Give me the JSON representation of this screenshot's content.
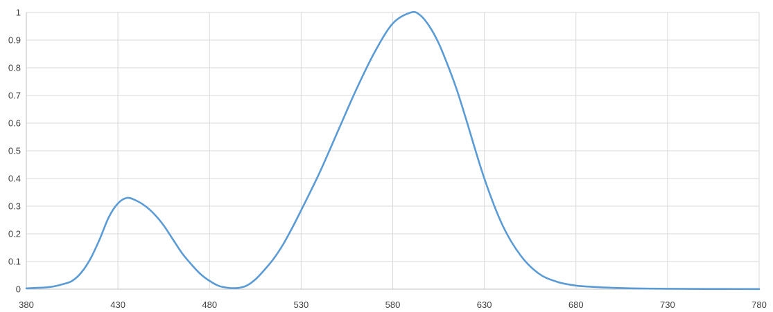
{
  "chart_data": {
    "type": "line",
    "title": "",
    "xlabel": "",
    "ylabel": "",
    "xlim": [
      380,
      780
    ],
    "ylim": [
      0,
      1
    ],
    "x_ticks": [
      "380",
      "430",
      "480",
      "530",
      "580",
      "630",
      "680",
      "730",
      "780"
    ],
    "y_ticks": [
      "0",
      "0.1",
      "0.2",
      "0.3",
      "0.4",
      "0.5",
      "0.6",
      "0.7",
      "0.8",
      "0.9",
      "1"
    ],
    "grid": true,
    "legend": "none",
    "series": [
      {
        "color": "#5b9bd5",
        "x": [
          380,
          390,
          395,
          400,
          405,
          410,
          415,
          420,
          425,
          430,
          435,
          440,
          445,
          450,
          455,
          460,
          465,
          470,
          475,
          480,
          485,
          490,
          495,
          500,
          505,
          510,
          515,
          520,
          525,
          530,
          540,
          550,
          560,
          570,
          580,
          590,
          595,
          600,
          605,
          610,
          615,
          620,
          630,
          640,
          650,
          660,
          670,
          680,
          690,
          700,
          710,
          720,
          730,
          740,
          760,
          780
        ],
        "y": [
          0.003,
          0.006,
          0.01,
          0.018,
          0.03,
          0.06,
          0.11,
          0.18,
          0.26,
          0.31,
          0.33,
          0.32,
          0.3,
          0.27,
          0.23,
          0.18,
          0.13,
          0.09,
          0.055,
          0.03,
          0.012,
          0.005,
          0.004,
          0.012,
          0.035,
          0.07,
          0.11,
          0.16,
          0.22,
          0.285,
          0.42,
          0.57,
          0.72,
          0.855,
          0.96,
          1.0,
          0.99,
          0.95,
          0.89,
          0.81,
          0.72,
          0.615,
          0.4,
          0.23,
          0.12,
          0.055,
          0.026,
          0.013,
          0.008,
          0.005,
          0.003,
          0.002,
          0.0015,
          0.001,
          0.0007,
          0.0005
        ]
      }
    ]
  }
}
